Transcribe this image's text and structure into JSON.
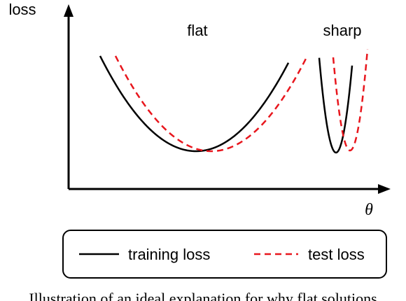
{
  "axes": {
    "y_label": "loss",
    "x_label": "θ"
  },
  "annotations": {
    "flat": "flat",
    "sharp": "sharp"
  },
  "legend": {
    "training": "training loss",
    "test": "test loss"
  },
  "series_style": {
    "training_color": "#000000",
    "test_color": "#e8161d"
  },
  "caption": "Illustration of an ideal explanation for why flat solutions"
}
